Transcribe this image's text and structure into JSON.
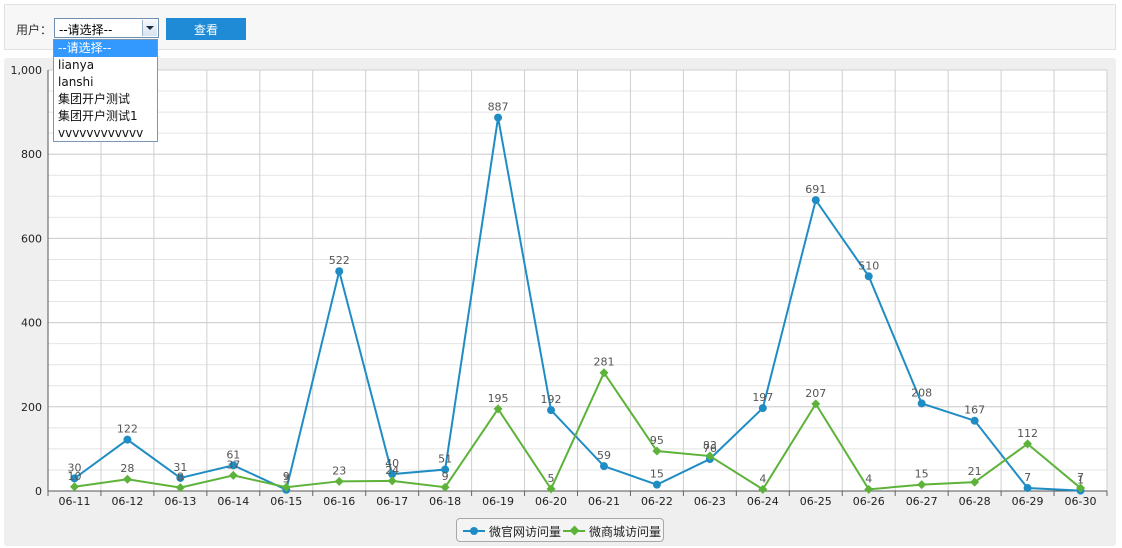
{
  "filter": {
    "user_label": "用户：",
    "select_value": "--请选择--",
    "view_button": "查看",
    "options": [
      "--请选择--",
      "lianya",
      "lanshi",
      "集团开户测试",
      "集团开户测试1",
      "vvvvvvvvvvvv"
    ]
  },
  "colors": {
    "series1": "#1f8dc4",
    "series2": "#5db33a",
    "grid": "#cfcfcf",
    "plot_bg": "#ffffff"
  },
  "legend": [
    {
      "name": "微官网访问量",
      "color": "#1f8dc4",
      "marker": "circle"
    },
    {
      "name": "微商城访问量",
      "color": "#5db33a",
      "marker": "diamond"
    }
  ],
  "chart_data": {
    "type": "line",
    "categories": [
      "06-11",
      "06-12",
      "06-13",
      "06-14",
      "06-15",
      "06-16",
      "06-17",
      "06-18",
      "06-19",
      "06-20",
      "06-21",
      "06-22",
      "06-23",
      "06-24",
      "06-25",
      "06-26",
      "06-27",
      "06-28",
      "06-29",
      "06-30"
    ],
    "series": [
      {
        "name": "微官网访问量",
        "values": [
          30,
          122,
          31,
          61,
          3,
          522,
          40,
          51,
          887,
          192,
          59,
          15,
          76,
          197,
          691,
          510,
          208,
          167,
          7,
          1
        ]
      },
      {
        "name": "微商城访问量",
        "values": [
          10,
          28,
          8,
          37,
          9,
          23,
          24,
          9,
          195,
          5,
          281,
          95,
          83,
          4,
          207,
          4,
          15,
          21,
          112,
          7
        ]
      }
    ],
    "ylim": [
      0,
      1000
    ],
    "yticks": [
      0,
      200,
      400,
      600,
      800,
      1000
    ],
    "ytick_labels": [
      "0",
      "200",
      "400",
      "600",
      "800",
      "1,000"
    ],
    "grid": true,
    "legend_position": "bottom-center"
  }
}
